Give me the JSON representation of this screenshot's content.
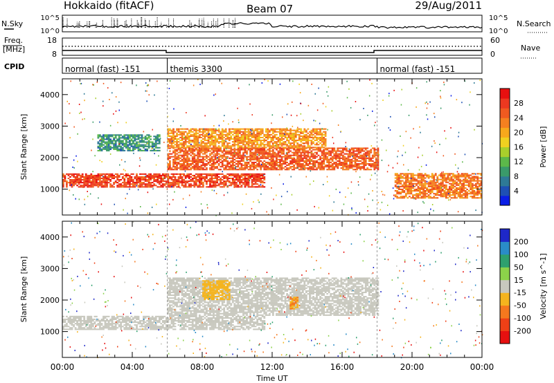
{
  "header": {
    "title": "Hokkaido (fitACF)",
    "beam": "Beam 07",
    "date": "29/Aug/2011"
  },
  "top_panels": {
    "nsky_label": "N.Sky",
    "nsearch_label": "N.Search",
    "nsky_ticks": [
      "10^5",
      "10^0"
    ],
    "freq_label_line1": "Freq.",
    "freq_label_line2": "[MHz]",
    "freq_ticks": [
      "18",
      "8"
    ],
    "nave_label": "Nave",
    "nave_ticks": [
      "60",
      "0"
    ],
    "cpid_label": "CPID",
    "cpid_segments": [
      {
        "label": "normal (fast) -151",
        "start_hour": 0,
        "end_hour": 6
      },
      {
        "label": "themis 3300",
        "start_hour": 6,
        "end_hour": 18
      },
      {
        "label": "normal (fast) -151",
        "start_hour": 18,
        "end_hour": 24
      }
    ]
  },
  "chart_data": [
    {
      "type": "heatmap",
      "name": "power",
      "xlabel": "",
      "ylabel": "Slant Range [km]",
      "xlim": [
        0,
        24
      ],
      "ylim": [
        180,
        4500
      ],
      "y_ticks": [
        1000,
        2000,
        3000,
        4000
      ],
      "colorbar": {
        "label": "Power [dB]",
        "ticks": [
          4,
          8,
          12,
          16,
          20,
          24,
          28
        ],
        "range": [
          0,
          32
        ],
        "colors": [
          "#0a1ee6",
          "#1e50b4",
          "#2e7a96",
          "#3a9a6a",
          "#5cb84a",
          "#a8cf2c",
          "#f0d020",
          "#f7a81c",
          "#f58020",
          "#f05a20",
          "#ec3820",
          "#e81010"
        ]
      },
      "echo_bands": [
        {
          "range_start_km": 1050,
          "range_end_km": 1500,
          "start_hour": 0,
          "end_hour": 11.5,
          "power_db": 28
        },
        {
          "range_start_km": 1600,
          "range_end_km": 2300,
          "start_hour": 6,
          "end_hour": 18,
          "power_db": 26
        },
        {
          "range_start_km": 2300,
          "range_end_km": 2900,
          "start_hour": 6,
          "end_hour": 15,
          "power_db": 22
        },
        {
          "range_start_km": 700,
          "range_end_km": 1500,
          "start_hour": 19,
          "end_hour": 24,
          "power_db": 24
        },
        {
          "range_start_km": 2200,
          "range_end_km": 2700,
          "start_hour": 2,
          "end_hour": 5.5,
          "power_db": 8
        }
      ]
    },
    {
      "type": "heatmap",
      "name": "velocity",
      "xlabel": "Time UT",
      "ylabel": "Slant Range [km]",
      "xlim": [
        0,
        24
      ],
      "ylim": [
        180,
        4500
      ],
      "x_ticks": [
        "00:00",
        "04:00",
        "08:00",
        "12:00",
        "16:00",
        "20:00",
        "00:00"
      ],
      "y_ticks": [
        1000,
        2000,
        3000,
        4000
      ],
      "colorbar": {
        "label": "Velocity [m s^-1]",
        "ticks": [
          200,
          100,
          50,
          15,
          -15,
          -50,
          -100,
          -200
        ],
        "colors": [
          "#1e28c8",
          "#2a8cc8",
          "#2ea06e",
          "#8cd24a",
          "#c8c8be",
          "#f5b41e",
          "#f5781e",
          "#ee4016",
          "#e61010"
        ]
      },
      "echo_bands": [
        {
          "range_start_km": 1050,
          "range_end_km": 1500,
          "start_hour": 0,
          "end_hour": 11.5,
          "velocity": 0
        },
        {
          "range_start_km": 1500,
          "range_end_km": 2700,
          "start_hour": 6,
          "end_hour": 18,
          "velocity": 0
        },
        {
          "range_start_km": 1700,
          "range_end_km": 2100,
          "start_hour": 13,
          "end_hour": 13.4,
          "velocity": -60
        },
        {
          "range_start_km": 2000,
          "range_end_km": 2600,
          "start_hour": 8,
          "end_hour": 9.5,
          "velocity": -40
        }
      ]
    }
  ]
}
